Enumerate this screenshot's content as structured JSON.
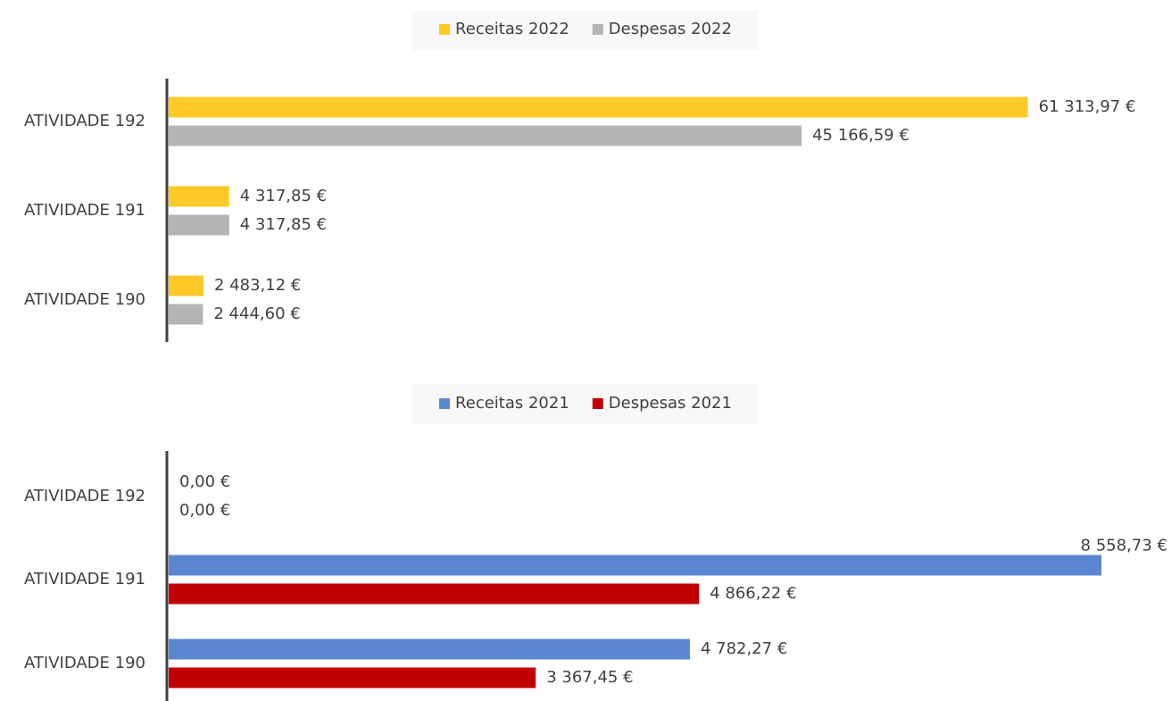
{
  "chart_data": [
    {
      "type": "bar",
      "orientation": "horizontal",
      "categories": [
        "ATIVIDADE 192",
        "ATIVIDADE 191",
        "ATIVIDADE 190"
      ],
      "series": [
        {
          "name": "Receitas 2022",
          "color": "#ffca28",
          "values": [
            61313.97,
            4317.85,
            2483.12
          ],
          "value_labels": [
            "61 313,97 €",
            "4 317,85 €",
            "2 483,12 €"
          ]
        },
        {
          "name": "Despesas 2022",
          "color": "#b4b4b4",
          "values": [
            45166.59,
            4317.85,
            2444.6
          ],
          "value_labels": [
            "45 166,59 €",
            "4 317,85 €",
            "2 444,60 €"
          ]
        }
      ],
      "xlim": [
        0,
        70000
      ],
      "legend": "top"
    },
    {
      "type": "bar",
      "orientation": "horizontal",
      "categories": [
        "ATIVIDADE 192",
        "ATIVIDADE 191",
        "ATIVIDADE 190"
      ],
      "series": [
        {
          "name": "Receitas 2021",
          "color": "#5b87d1",
          "values": [
            0,
            8558.73,
            4782.27
          ],
          "value_labels": [
            "0,00 €",
            "8 558,73 €",
            "4 782,27 €"
          ]
        },
        {
          "name": "Despesas 2021",
          "color": "#c00000",
          "values": [
            0,
            4866.22,
            3367.45
          ],
          "value_labels": [
            "0,00 €",
            "4 866,22 €",
            "3 367,45 €"
          ]
        }
      ],
      "xlim": [
        0,
        9000
      ],
      "legend": "top"
    }
  ]
}
